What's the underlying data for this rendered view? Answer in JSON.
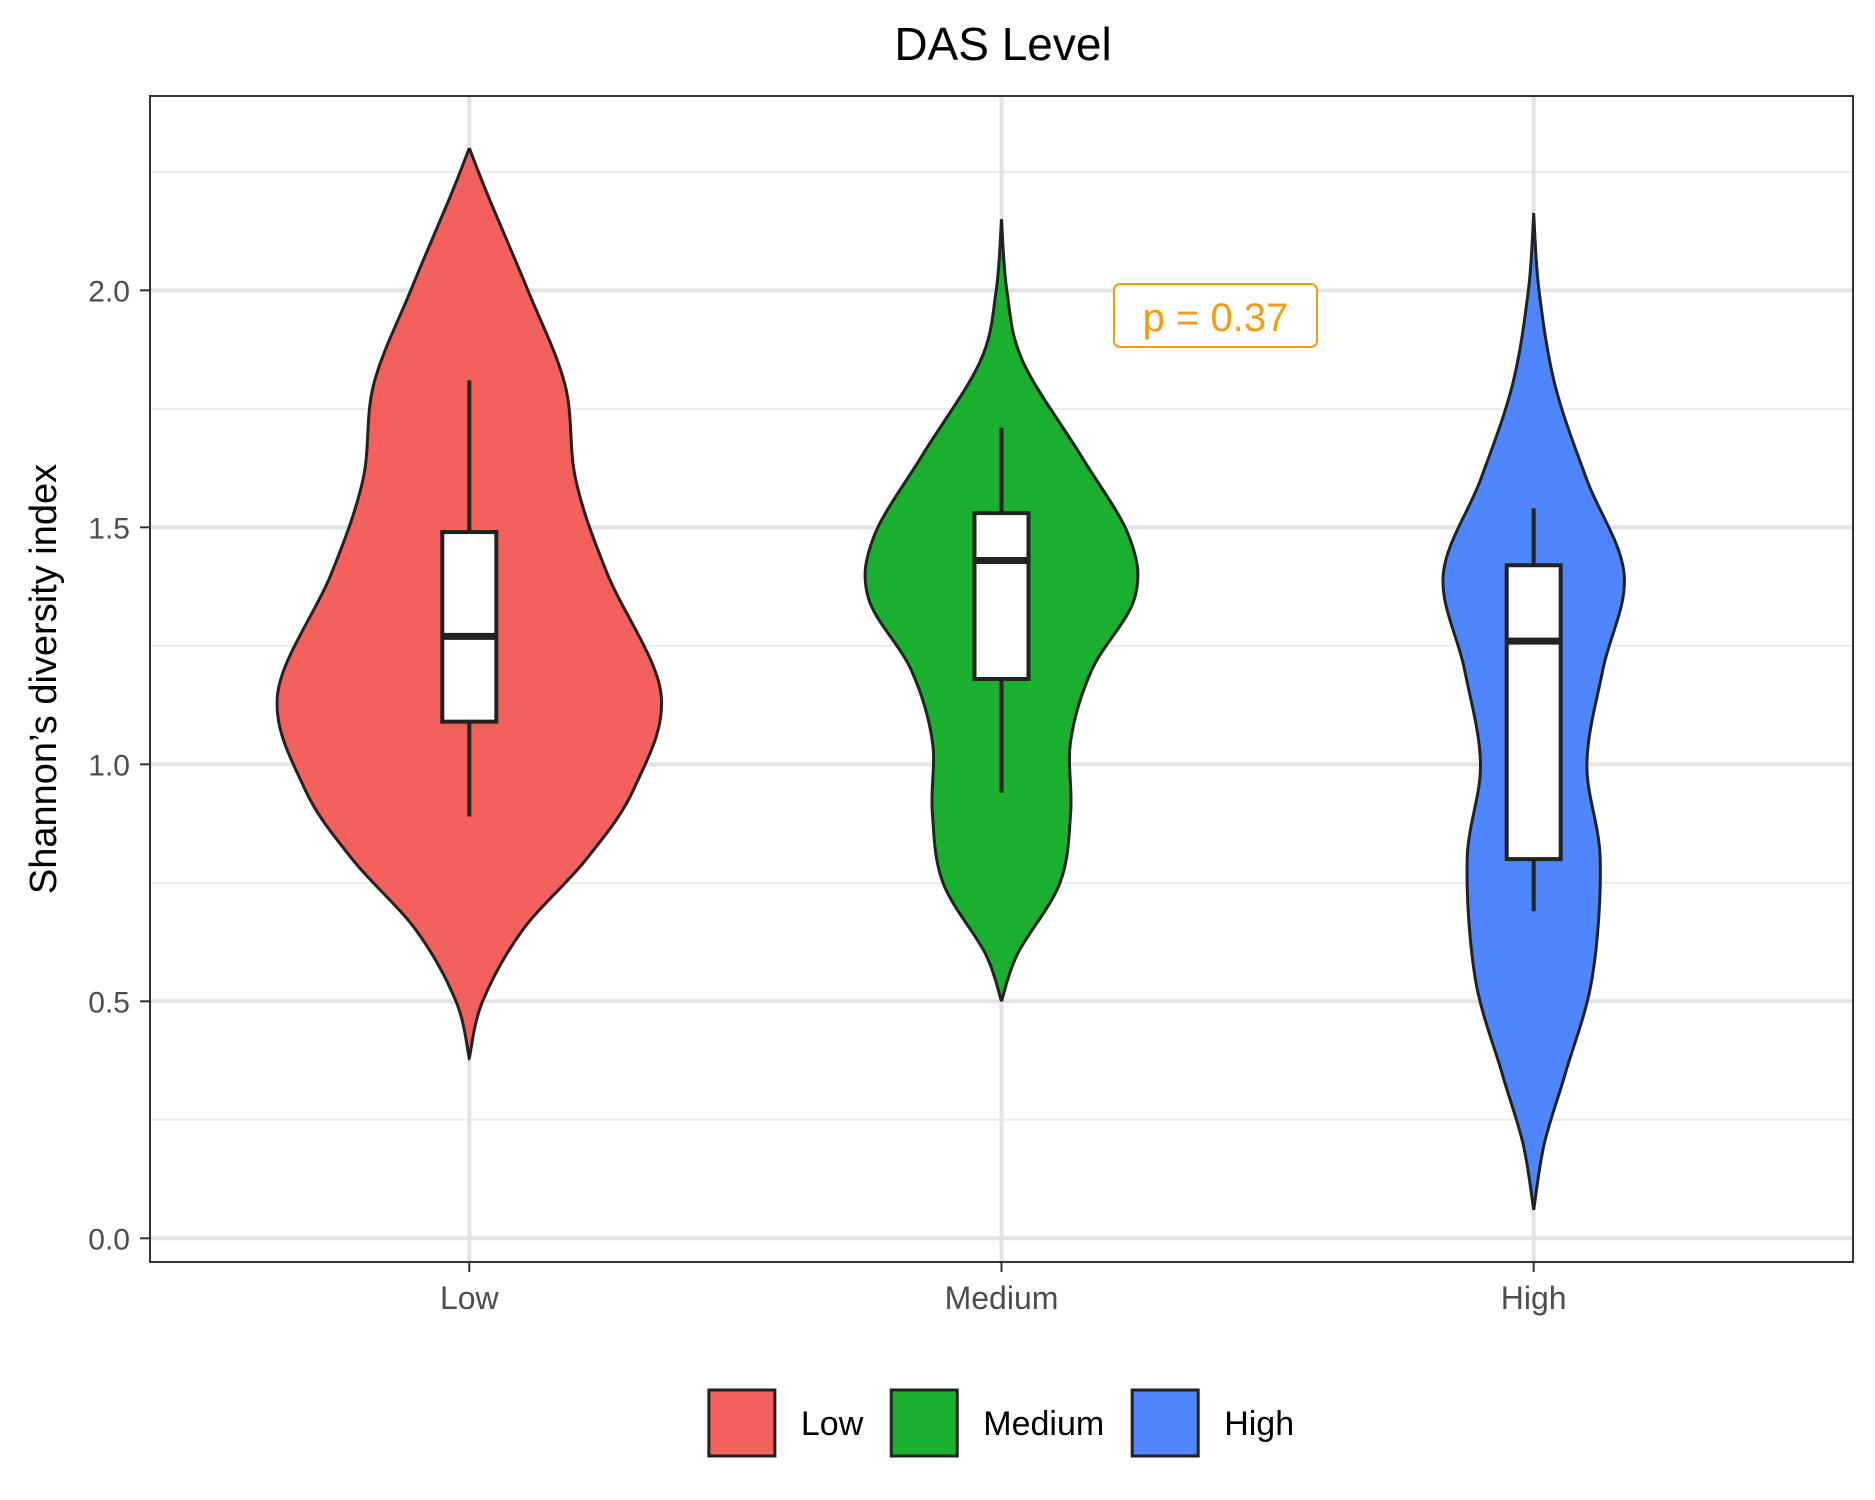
{
  "chart_data": {
    "type": "violin",
    "title": "DAS Level",
    "xlabel": "",
    "ylabel": "Shannon’s diversity index",
    "categories": [
      "Low",
      "Medium",
      "High"
    ],
    "ylim": [
      -0.05,
      2.41
    ],
    "yticks": [
      "0.0",
      "0.5",
      "1.0",
      "1.5",
      "2.0"
    ],
    "ytick_values": [
      0.0,
      0.5,
      1.0,
      1.5,
      2.0
    ],
    "grid": true,
    "legend_position": "bottom",
    "annotation": "p = 0.37",
    "annotation_color": "#F39C12",
    "series": [
      {
        "name": "Low",
        "color": "#F8766D",
        "fill": "#F4605B",
        "violin": {
          "y": [
            0.38,
            0.5,
            0.65,
            0.8,
            0.95,
            1.15,
            1.4,
            1.6,
            1.8,
            2.0,
            2.2,
            2.3
          ],
          "half_width": [
            0.0,
            0.025,
            0.1,
            0.22,
            0.31,
            0.36,
            0.26,
            0.2,
            0.18,
            0.11,
            0.035,
            0.0
          ]
        },
        "box": {
          "lower_whisker": 0.89,
          "q1": 1.09,
          "median": 1.27,
          "q3": 1.49,
          "upper_whisker": 1.81
        }
      },
      {
        "name": "Medium",
        "color": "#00BA38",
        "fill": "#1AAF2E",
        "violin": {
          "y": [
            0.5,
            0.6,
            0.75,
            0.9,
            1.05,
            1.2,
            1.35,
            1.48,
            1.65,
            1.85,
            2.0,
            2.15
          ],
          "half_width": [
            0.0,
            0.03,
            0.11,
            0.13,
            0.13,
            0.17,
            0.25,
            0.24,
            0.15,
            0.04,
            0.01,
            0.0
          ]
        },
        "box": {
          "lower_whisker": 0.94,
          "q1": 1.18,
          "median": 1.43,
          "q3": 1.53,
          "upper_whisker": 1.71
        }
      },
      {
        "name": "High",
        "color": "#619CFF",
        "fill": "#4F86FD",
        "violin": {
          "y": [
            0.06,
            0.2,
            0.35,
            0.55,
            0.8,
            1.0,
            1.2,
            1.4,
            1.6,
            1.8,
            2.0,
            2.16
          ],
          "half_width": [
            0.0,
            0.02,
            0.06,
            0.11,
            0.125,
            0.1,
            0.13,
            0.17,
            0.1,
            0.04,
            0.01,
            0.0
          ]
        },
        "box": {
          "lower_whisker": 0.69,
          "q1": 0.8,
          "median": 1.26,
          "q3": 1.42,
          "upper_whisker": 1.54
        }
      }
    ]
  }
}
